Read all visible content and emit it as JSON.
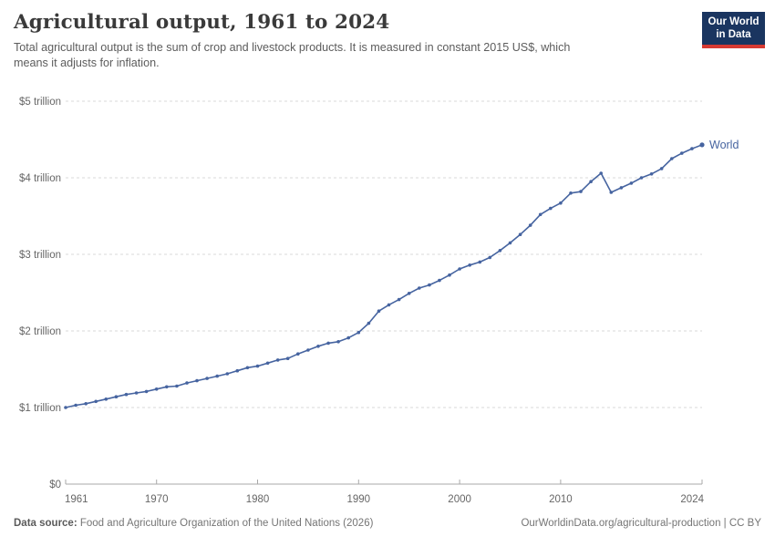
{
  "header": {
    "title": "Agricultural output, 1961 to 2024",
    "subtitle_line1": "Total agricultural output is the sum of crop and livestock products. It is measured in constant 2015 US$, which",
    "subtitle_line2": "means it adjusts for inflation.",
    "logo": {
      "line1": "Our World",
      "line2": "in Data",
      "bg_color": "#1a3560",
      "stripe_color": "#d73a32"
    }
  },
  "footer": {
    "datasource_label": "Data source:",
    "datasource_value": " Food and Agriculture Organization of the United Nations (2026)",
    "link": "OurWorldinData.org/agricultural-production | CC BY"
  },
  "chart_data": {
    "type": "line",
    "title": "Agricultural output, 1961 to 2024",
    "xlabel": "",
    "ylabel": "",
    "xlim": [
      1961,
      2024
    ],
    "ylim": [
      0,
      5
    ],
    "grid": "horizontal-dashed",
    "legend_position": "end-of-line",
    "x_ticks": [
      1961,
      1970,
      1980,
      1990,
      2000,
      2010,
      2024
    ],
    "y_ticks": [
      {
        "value": 0,
        "label": "$0"
      },
      {
        "value": 1,
        "label": "$1 trillion"
      },
      {
        "value": 2,
        "label": "$2 trillion"
      },
      {
        "value": 3,
        "label": "$3 trillion"
      },
      {
        "value": 4,
        "label": "$4 trillion"
      },
      {
        "value": 5,
        "label": "$5 trillion"
      }
    ],
    "unit": "trillion constant 2015 US$",
    "colors": {
      "line": "#4664a0",
      "grid": "#dadada",
      "axis": "#a8a8a8",
      "tick_text": "#666666"
    },
    "series": [
      {
        "name": "World",
        "color": "#4664a0",
        "years": [
          1961,
          1962,
          1963,
          1964,
          1965,
          1966,
          1967,
          1968,
          1969,
          1970,
          1971,
          1972,
          1973,
          1974,
          1975,
          1976,
          1977,
          1978,
          1979,
          1980,
          1981,
          1982,
          1983,
          1984,
          1985,
          1986,
          1987,
          1988,
          1989,
          1990,
          1991,
          1992,
          1993,
          1994,
          1995,
          1996,
          1997,
          1998,
          1999,
          2000,
          2001,
          2002,
          2003,
          2004,
          2005,
          2006,
          2007,
          2008,
          2009,
          2010,
          2011,
          2012,
          2013,
          2014,
          2015,
          2016,
          2017,
          2018,
          2019,
          2020,
          2021,
          2022,
          2023,
          2024
        ],
        "values": [
          1.0,
          1.03,
          1.05,
          1.08,
          1.11,
          1.14,
          1.17,
          1.19,
          1.21,
          1.24,
          1.27,
          1.28,
          1.32,
          1.35,
          1.38,
          1.41,
          1.44,
          1.48,
          1.52,
          1.54,
          1.58,
          1.62,
          1.64,
          1.7,
          1.75,
          1.8,
          1.84,
          1.86,
          1.91,
          1.98,
          2.1,
          2.26,
          2.34,
          2.41,
          2.49,
          2.56,
          2.6,
          2.66,
          2.73,
          2.81,
          2.86,
          2.9,
          2.96,
          3.05,
          3.15,
          3.26,
          3.38,
          3.52,
          3.6,
          3.67,
          3.8,
          3.82,
          3.95,
          4.06,
          3.81,
          3.87,
          3.93,
          4.0,
          4.05,
          4.12,
          4.25,
          4.32,
          4.38,
          4.43
        ]
      }
    ]
  }
}
